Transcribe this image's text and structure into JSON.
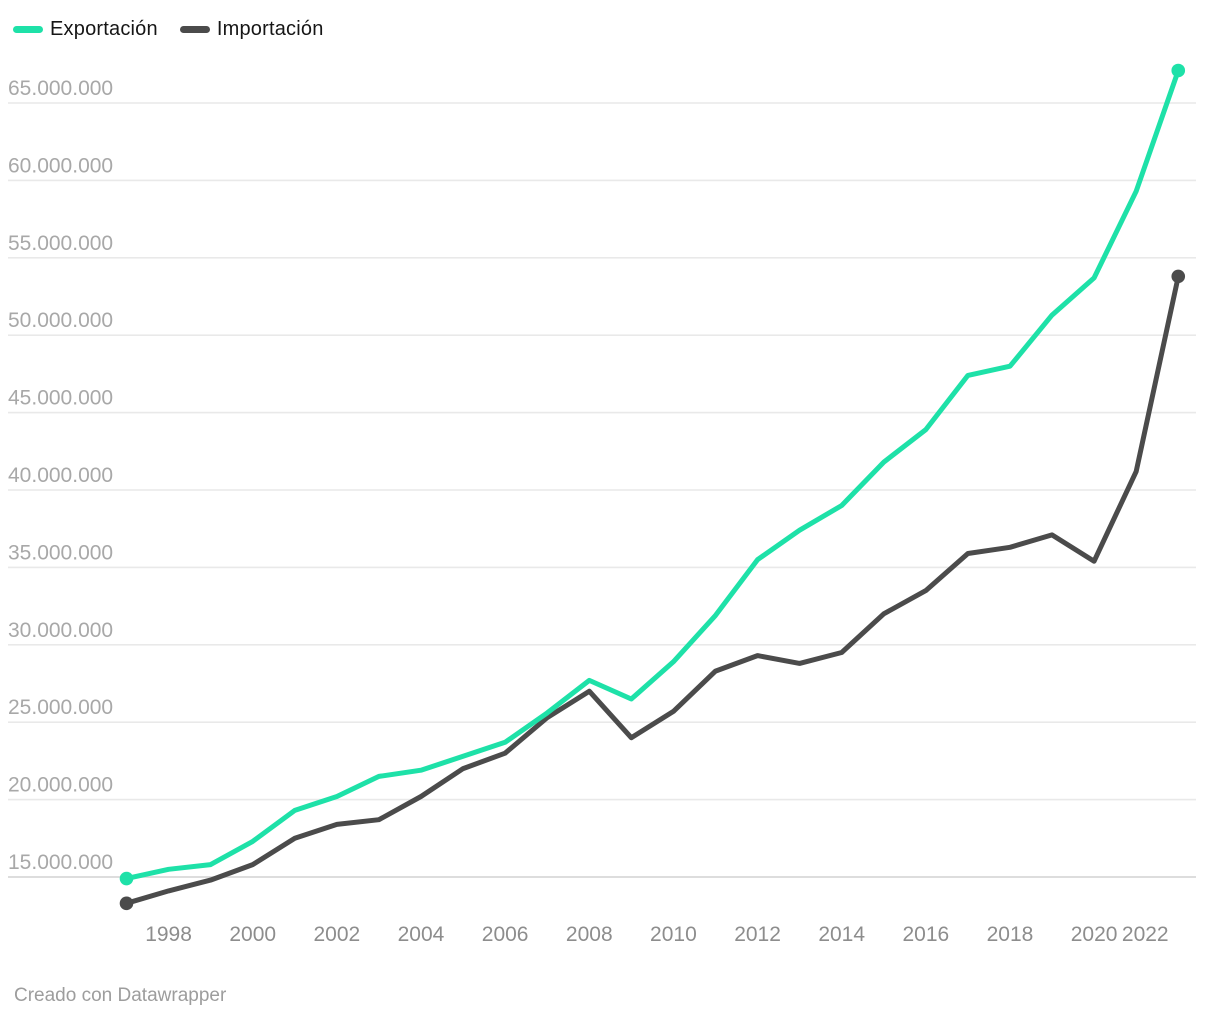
{
  "legend": {
    "items": [
      {
        "label": "Exportación",
        "color": "#1EE1A8"
      },
      {
        "label": "Importación",
        "color": "#4B4B4B"
      }
    ]
  },
  "footer": {
    "text": "Creado con Datawrapper"
  },
  "chart_data": {
    "type": "line",
    "x": [
      1997,
      1998,
      1999,
      2000,
      2001,
      2002,
      2003,
      2004,
      2005,
      2006,
      2007,
      2008,
      2009,
      2010,
      2011,
      2012,
      2013,
      2014,
      2015,
      2016,
      2017,
      2018,
      2019,
      2020,
      2021,
      2022
    ],
    "series": [
      {
        "name": "Exportación",
        "color": "#1EE1A8",
        "values": [
          14900000,
          15500000,
          15800000,
          17300000,
          19300000,
          20200000,
          21500000,
          21900000,
          22800000,
          23700000,
          25600000,
          27700000,
          26500000,
          28900000,
          31900000,
          35500000,
          37400000,
          39000000,
          41800000,
          43900000,
          47400000,
          48000000,
          51300000,
          53700000,
          59300000,
          67100000
        ]
      },
      {
        "name": "Importación",
        "color": "#4B4B4B",
        "values": [
          13300000,
          14100000,
          14800000,
          15800000,
          17500000,
          18400000,
          18700000,
          20200000,
          22000000,
          23000000,
          25300000,
          27000000,
          24000000,
          25700000,
          28300000,
          29300000,
          28800000,
          29500000,
          32000000,
          33500000,
          35900000,
          36300000,
          37100000,
          35400000,
          41200000,
          53800000
        ]
      }
    ],
    "y_ticks": [
      {
        "value": 65000000,
        "label": "65.000.000"
      },
      {
        "value": 60000000,
        "label": "60.000.000"
      },
      {
        "value": 55000000,
        "label": "55.000.000"
      },
      {
        "value": 50000000,
        "label": "50.000.000"
      },
      {
        "value": 45000000,
        "label": "45.000.000"
      },
      {
        "value": 40000000,
        "label": "40.000.000"
      },
      {
        "value": 35000000,
        "label": "35.000.000"
      },
      {
        "value": 30000000,
        "label": "30.000.000"
      },
      {
        "value": 25000000,
        "label": "25.000.000"
      },
      {
        "value": 20000000,
        "label": "20.000.000"
      },
      {
        "value": 15000000,
        "label": "15.000.000"
      }
    ],
    "x_ticks": [
      {
        "value": 1998,
        "label": "1998"
      },
      {
        "value": 2000,
        "label": "2000"
      },
      {
        "value": 2002,
        "label": "2002"
      },
      {
        "value": 2004,
        "label": "2004"
      },
      {
        "value": 2006,
        "label": "2006"
      },
      {
        "value": 2008,
        "label": "2008"
      },
      {
        "value": 2010,
        "label": "2010"
      },
      {
        "value": 2012,
        "label": "2012"
      },
      {
        "value": 2014,
        "label": "2014"
      },
      {
        "value": 2016,
        "label": "2016"
      },
      {
        "value": 2018,
        "label": "2018"
      },
      {
        "value": 2020,
        "label": "2020"
      },
      {
        "value": 2022,
        "label": "2022"
      }
    ],
    "grid": "horizontal",
    "legend_position": "top-left",
    "endpoint_dots": true,
    "xlim": [
      1997,
      2022
    ],
    "ylim": [
      12800000,
      67500000
    ]
  }
}
